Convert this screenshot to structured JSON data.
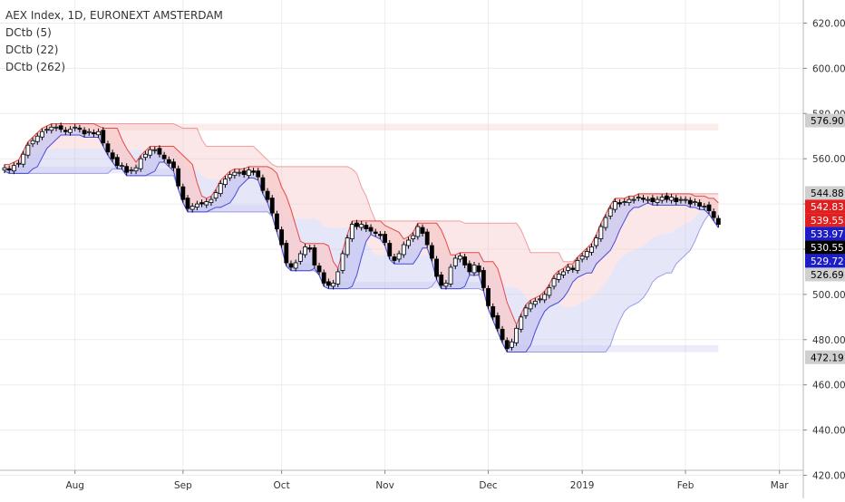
{
  "header": {
    "title": "AEX Index, 1D, EURONEXT AMSTERDAM",
    "indicators": [
      "DCtb (5)",
      "DCtb (22)",
      "DCtb (262)"
    ]
  },
  "chart_data": {
    "type": "candlestick",
    "title": "AEX Index, 1D, EURONEXT AMSTERDAM",
    "ylim": [
      420,
      625
    ],
    "y_ticks": [
      "620.00",
      "600.00",
      "580.00",
      "560.00",
      "540.00",
      "520.00",
      "500.00",
      "480.00",
      "460.00",
      "440.00",
      "420.00"
    ],
    "x_ticks": [
      "Aug",
      "Sep",
      "Oct",
      "Nov",
      "Dec",
      "2019",
      "Feb",
      "Mar"
    ],
    "x_ticks_index": [
      15,
      38,
      59,
      81,
      103,
      123,
      145,
      165
    ],
    "grid": true,
    "colors": {
      "up_body": "#ffffff",
      "down_body": "#000000",
      "upper_band": "#e64a4a",
      "lower_band": "#4a4ad8",
      "upper_fill": "#f7caca",
      "lower_fill": "#c7c7f2"
    },
    "price_labels": [
      {
        "text": "576.90",
        "value": 576.9,
        "bg": "#cfcfcf",
        "fg": "#000000"
      },
      {
        "text": "544.88",
        "value": 544.88,
        "bg": "#cfcfcf",
        "fg": "#000000"
      },
      {
        "text": "542.83",
        "value": 542.83,
        "bg": "#e02020",
        "fg": "#ffffff"
      },
      {
        "text": "539.55",
        "value": 539.55,
        "bg": "#e02020",
        "fg": "#ffffff"
      },
      {
        "text": "533.97",
        "value": 533.97,
        "bg": "#1c1cc8",
        "fg": "#ffffff"
      },
      {
        "text": "530.55",
        "value": 530.55,
        "bg": "#000000",
        "fg": "#ffffff"
      },
      {
        "text": "529.72",
        "value": 529.72,
        "bg": "#1c1cc8",
        "fg": "#ffffff"
      },
      {
        "text": "526.69",
        "value": 526.69,
        "bg": "#cfcfcf",
        "fg": "#000000"
      },
      {
        "text": "472.19",
        "value": 472.19,
        "bg": "#cfcfcf",
        "fg": "#000000"
      }
    ],
    "close": [
      556,
      555,
      557,
      558,
      562,
      566,
      568,
      570,
      572,
      573,
      574,
      574,
      573,
      572,
      573,
      574,
      573,
      571,
      572,
      571,
      572,
      567,
      563,
      560,
      557,
      557,
      554,
      555,
      556,
      560,
      562,
      564,
      564,
      562,
      560,
      558,
      556,
      548,
      542,
      538,
      539,
      540,
      540,
      541,
      542,
      545,
      549,
      551,
      553,
      554,
      554,
      553,
      555,
      554,
      552,
      546,
      542,
      536,
      529,
      522,
      514,
      512,
      514,
      518,
      521,
      520,
      513,
      510,
      505,
      504,
      505,
      510,
      518,
      525,
      531,
      530,
      531,
      529,
      528,
      527,
      526,
      523,
      517,
      515,
      518,
      522,
      524,
      526,
      530,
      527,
      522,
      516,
      508,
      504,
      505,
      512,
      516,
      517,
      513,
      510,
      513,
      510,
      503,
      495,
      490,
      485,
      480,
      476,
      479,
      485,
      490,
      494,
      496,
      497,
      498,
      500,
      503,
      507,
      509,
      510,
      512,
      511,
      515,
      517,
      519,
      521,
      525,
      530,
      534,
      538,
      541,
      540,
      541,
      542,
      542,
      543,
      542,
      542,
      541,
      542,
      543,
      542,
      543,
      541,
      542,
      542,
      540,
      541,
      539,
      539,
      537,
      534,
      531
    ]
  }
}
